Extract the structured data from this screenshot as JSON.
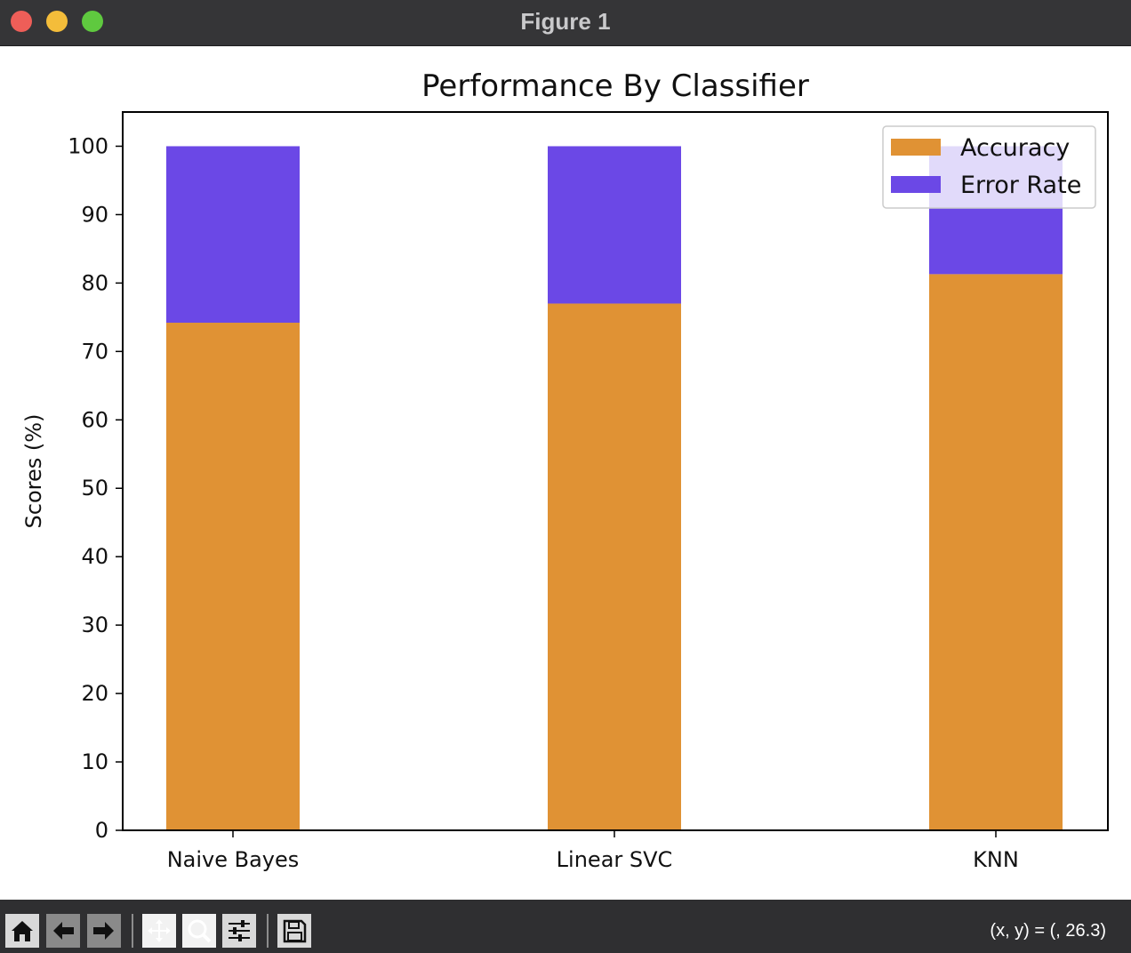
{
  "window": {
    "title": "Figure 1"
  },
  "toolbar": {
    "buttons": [
      {
        "name": "home-icon",
        "enabled": true
      },
      {
        "name": "back-icon",
        "enabled": false
      },
      {
        "name": "forward-icon",
        "enabled": false
      },
      {
        "name": "pan-icon",
        "enabled": true
      },
      {
        "name": "zoom-icon",
        "enabled": true
      },
      {
        "name": "configure-subplots-icon",
        "enabled": true
      },
      {
        "name": "save-icon",
        "enabled": true
      }
    ],
    "coords_text": "(x, y) = (, 26.3)"
  },
  "colors": {
    "accuracy": "#e09234",
    "error_rate": "#6b48e6"
  },
  "chart_data": {
    "type": "bar",
    "stacked": true,
    "title": "Performance By Classifier",
    "xlabel": "",
    "ylabel": "Scores (%)",
    "categories": [
      "Naive Bayes",
      "Linear SVC",
      "KNN"
    ],
    "series": [
      {
        "name": "Accuracy",
        "values": [
          74.2,
          77.0,
          81.3
        ],
        "color": "#e09234"
      },
      {
        "name": "Error Rate",
        "values": [
          25.8,
          23.0,
          18.7
        ],
        "color": "#6b48e6"
      }
    ],
    "ylim": [
      0,
      105
    ],
    "yticks": [
      0,
      10,
      20,
      30,
      40,
      50,
      60,
      70,
      80,
      90,
      100
    ],
    "ytick_labels": [
      "0",
      "10",
      "20",
      "30",
      "40",
      "50",
      "60",
      "70",
      "80",
      "90",
      "100"
    ],
    "legend": {
      "placement": "upper right",
      "entries": [
        "Accuracy",
        "Error Rate"
      ]
    },
    "grid": false
  }
}
